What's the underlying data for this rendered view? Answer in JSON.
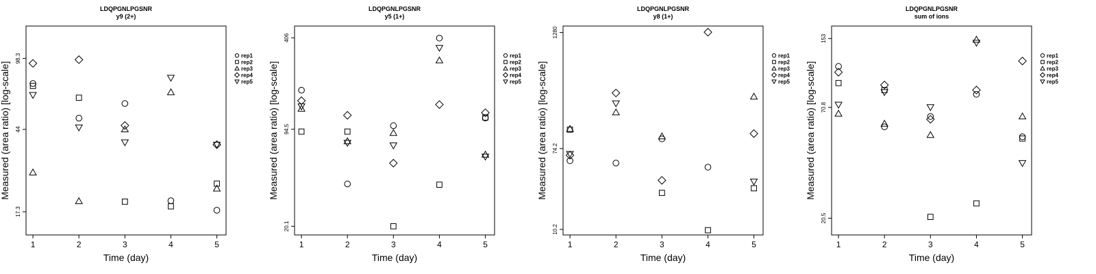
{
  "chart_data": [
    {
      "type": "scatter",
      "title": "LDQPGNLPGSNR",
      "subtitle": "y9 (2+)",
      "xlabel": "Time (day)",
      "ylabel": "Measured (area ratio) [log-scale]",
      "x": [
        1,
        2,
        3,
        4,
        5
      ],
      "xlim": [
        0.85,
        5.2
      ],
      "ylim": [
        13.3,
        142
      ],
      "ylog": true,
      "yticks": [
        17.3,
        44,
        98.3
      ],
      "ytick_labels": [
        "17.3",
        "44",
        "98.3"
      ],
      "legend_position": "right",
      "series": [
        {
          "name": "rep1",
          "marker": "circle",
          "values": [
            74,
            50,
            59,
            19.6,
            17.6
          ]
        },
        {
          "name": "rep2",
          "marker": "square",
          "values": [
            72,
            63,
            19.4,
            18.4,
            23.8
          ]
        },
        {
          "name": "rep3",
          "marker": "triangle",
          "values": [
            27,
            19.5,
            44,
            67,
            22.5
          ]
        },
        {
          "name": "rep4",
          "marker": "diamond",
          "values": [
            93,
            97,
            46,
            null,
            37
          ]
        },
        {
          "name": "rep5",
          "marker": "triangle-down",
          "values": [
            65,
            45,
            38,
            79,
            37
          ]
        }
      ]
    },
    {
      "type": "scatter",
      "title": "LDQPGNLPGSNR",
      "subtitle": "y5 (1+)",
      "xlabel": "Time (day)",
      "ylabel": "Measured (area ratio) [log-scale]",
      "x": [
        1,
        2,
        3,
        4,
        5
      ],
      "xlim": [
        0.85,
        5.2
      ],
      "ylim": [
        17.5,
        490
      ],
      "ylog": true,
      "yticks": [
        20.1,
        94.5,
        406
      ],
      "ytick_labels": [
        "20.1",
        "94.5",
        "406"
      ],
      "legend_position": "right",
      "series": [
        {
          "name": "rep1",
          "marker": "circle",
          "values": [
            176,
            39.5,
            100,
            404,
            113
          ]
        },
        {
          "name": "rep2",
          "marker": "square",
          "values": [
            91,
            91,
            20.1,
            39,
            114
          ]
        },
        {
          "name": "rep3",
          "marker": "triangle",
          "values": [
            131,
            78,
            89,
            283,
            63
          ]
        },
        {
          "name": "rep4",
          "marker": "diamond",
          "values": [
            149,
            118,
            55,
            140,
            123
          ]
        },
        {
          "name": "rep5",
          "marker": "triangle-down",
          "values": [
            136,
            76,
            73,
            346,
            61
          ]
        }
      ]
    },
    {
      "type": "scatter",
      "title": "LDQPGNLPGSNR",
      "subtitle": "y8 (1+)",
      "xlabel": "Time (day)",
      "ylabel": "Measured (area ratio) [log-scale]",
      "x": [
        1,
        2,
        3,
        4,
        5
      ],
      "xlim": [
        0.85,
        5.2
      ],
      "ylim": [
        8.9,
        1500
      ],
      "ylog": true,
      "yticks": [
        10.2,
        74.2,
        1280
      ],
      "ytick_labels": [
        "10.2",
        "74.2",
        "1280"
      ],
      "legend_position": "right",
      "series": [
        {
          "name": "rep1",
          "marker": "circle",
          "values": [
            55,
            52,
            94,
            47,
            null
          ]
        },
        {
          "name": "rep2",
          "marker": "square",
          "values": [
            118,
            null,
            25,
            10,
            28
          ]
        },
        {
          "name": "rep3",
          "marker": "triangle",
          "values": [
            120,
            180,
            100,
            null,
            265
          ]
        },
        {
          "name": "rep4",
          "marker": "diamond",
          "values": [
            63,
            290,
            34,
            1290,
            107
          ]
        },
        {
          "name": "rep5",
          "marker": "triangle-down",
          "values": [
            65,
            225,
            null,
            null,
            33
          ]
        }
      ]
    },
    {
      "type": "scatter",
      "title": "LDQPGNLPGSNR",
      "subtitle": "sum of ions",
      "xlabel": "Time (day)",
      "ylabel": "Measured (area ratio) [log-scale]",
      "x": [
        1,
        2,
        3,
        4,
        5
      ],
      "xlim": [
        0.85,
        5.2
      ],
      "ylim": [
        17.0,
        176
      ],
      "ylog": true,
      "yticks": [
        20.5,
        70.8,
        153
      ],
      "ytick_labels": [
        "20.5",
        "70.8",
        "153"
      ],
      "legend_position": "right",
      "series": [
        {
          "name": "rep1",
          "marker": "circle",
          "values": [
            112,
            57,
            64,
            82,
            51
          ]
        },
        {
          "name": "rep2",
          "marker": "square",
          "values": [
            93,
            86,
            20.8,
            24.2,
            50
          ]
        },
        {
          "name": "rep3",
          "marker": "triangle",
          "values": [
            66,
            59,
            52,
            151,
            64
          ]
        },
        {
          "name": "rep4",
          "marker": "diamond",
          "values": [
            105,
            91,
            62,
            86,
            119
          ]
        },
        {
          "name": "rep5",
          "marker": "triangle-down",
          "values": [
            73,
            84,
            71,
            146,
            38
          ]
        }
      ]
    }
  ]
}
